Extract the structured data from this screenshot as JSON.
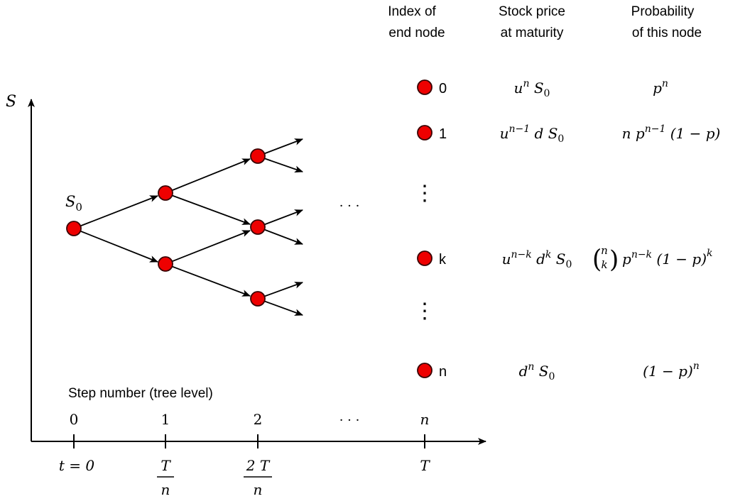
{
  "axes": {
    "y_label": "S"
  },
  "columns": {
    "index_header": [
      "Index of",
      "end node"
    ],
    "price_header": [
      "Stock price",
      "at maturity"
    ],
    "prob_header": [
      "Probability",
      "of this node"
    ]
  },
  "tree": {
    "root_label": "S",
    "root_sub": "0",
    "ellipsis": "· · ·"
  },
  "end_nodes": {
    "vdots": "⋮",
    "rows": [
      {
        "index": "0",
        "price": {
          "u": "u",
          "uexp": "n",
          "d": "",
          "dexp": "",
          "s": "S",
          "ssub": "0"
        },
        "prob": {
          "binom_top": "",
          "binom_bot": "",
          "mid": "",
          "p": "p",
          "pexp": "n",
          "q": "",
          "qexp": ""
        }
      },
      {
        "index": "1",
        "price": {
          "u": "u",
          "uexp": "n−1",
          "d": "d",
          "dexp": "",
          "s": "S",
          "ssub": "0"
        },
        "prob": {
          "binom_top": "",
          "binom_bot": "",
          "mid": "n",
          "p": "p",
          "pexp": "n−1",
          "q": "(1 − p)",
          "qexp": ""
        }
      },
      {
        "index": "k",
        "price": {
          "u": "u",
          "uexp": "n−k",
          "d": "d",
          "dexp": "k",
          "s": "S",
          "ssub": "0"
        },
        "prob": {
          "binom_top": "n",
          "binom_bot": "k",
          "mid": "",
          "p": "p",
          "pexp": "n−k",
          "q": "(1 − p)",
          "qexp": "k"
        }
      },
      {
        "index": "n",
        "price": {
          "u": "",
          "uexp": "",
          "d": "d",
          "dexp": "n",
          "s": "S",
          "ssub": "0"
        },
        "prob": {
          "binom_top": "",
          "binom_bot": "",
          "mid": "",
          "p": "",
          "pexp": "",
          "q": "(1 − p)",
          "qexp": "n"
        }
      }
    ]
  },
  "steps": {
    "title": "Step number (tree level)",
    "labels": [
      "0",
      "1",
      "2",
      "· · ·",
      "n"
    ]
  },
  "time_axis": {
    "t0": "t = 0",
    "fractions": [
      {
        "num": "T",
        "den": "n"
      },
      {
        "num": "2 T",
        "den": "n"
      }
    ],
    "tT": "T"
  },
  "colors": {
    "node_fill": "#ee0000",
    "node_stroke": "#3a0000",
    "line": "#000000"
  }
}
